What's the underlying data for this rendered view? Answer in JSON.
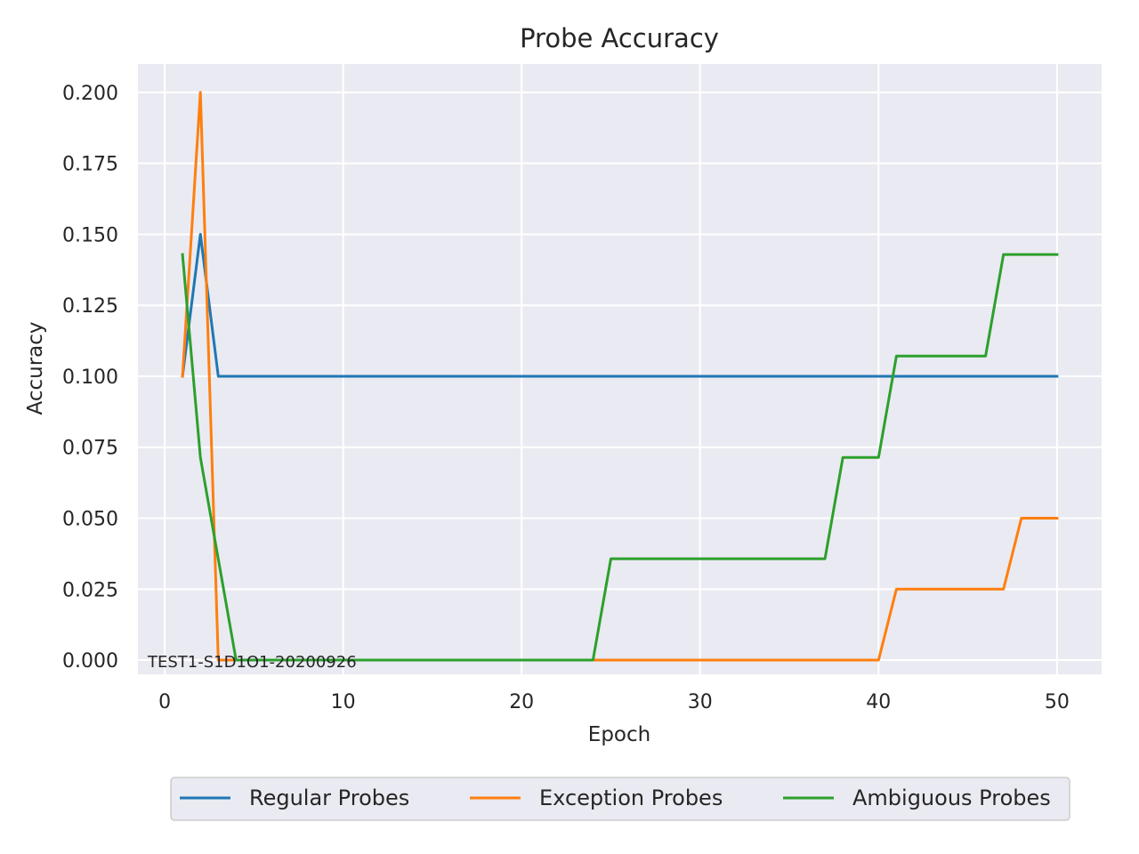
{
  "chart_data": {
    "type": "line",
    "title": "Probe Accuracy",
    "xlabel": "Epoch",
    "ylabel": "Accuracy",
    "xlim": [
      -1.5,
      52.5
    ],
    "ylim": [
      -0.005,
      0.21
    ],
    "x_ticks": [
      0,
      10,
      20,
      30,
      40,
      50
    ],
    "y_ticks": [
      0.0,
      0.025,
      0.05,
      0.075,
      0.1,
      0.125,
      0.15,
      0.175,
      0.2
    ],
    "y_tick_labels": [
      "0.000",
      "0.025",
      "0.050",
      "0.075",
      "0.100",
      "0.125",
      "0.150",
      "0.175",
      "0.200"
    ],
    "grid": true,
    "legend_position": "bottom-center",
    "annotation": "TEST1-S1D1O1-20200926",
    "series": [
      {
        "name": "Regular Probes",
        "color": "#1f77b4",
        "points": [
          [
            1,
            0.1
          ],
          [
            2,
            0.15
          ],
          [
            3,
            0.1
          ],
          [
            50,
            0.1
          ]
        ]
      },
      {
        "name": "Exception Probes",
        "color": "#ff7f0e",
        "points": [
          [
            1,
            0.1
          ],
          [
            2,
            0.2
          ],
          [
            3,
            0.0
          ],
          [
            40,
            0.0
          ],
          [
            41,
            0.025
          ],
          [
            47,
            0.025
          ],
          [
            48,
            0.05
          ],
          [
            50,
            0.05
          ]
        ]
      },
      {
        "name": "Ambiguous Probes",
        "color": "#2ca02c",
        "points": [
          [
            1,
            0.1429
          ],
          [
            2,
            0.0714
          ],
          [
            4,
            0.0
          ],
          [
            24,
            0.0
          ],
          [
            25,
            0.0357
          ],
          [
            37,
            0.0357
          ],
          [
            38,
            0.0714
          ],
          [
            40,
            0.0714
          ],
          [
            41,
            0.1071
          ],
          [
            46,
            0.1071
          ],
          [
            47,
            0.1429
          ],
          [
            50,
            0.1429
          ]
        ]
      }
    ]
  }
}
